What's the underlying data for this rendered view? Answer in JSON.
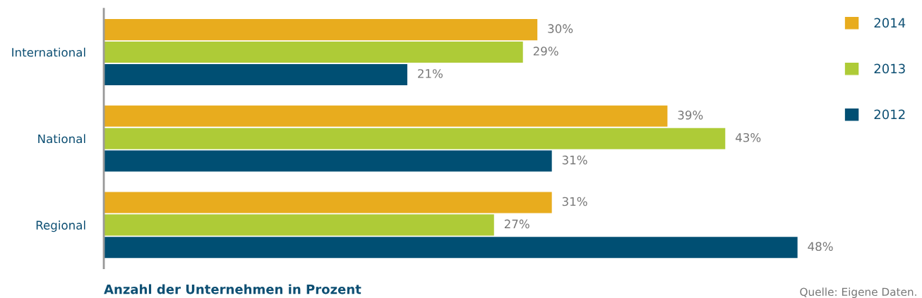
{
  "chart_data": {
    "type": "bar",
    "orientation": "horizontal",
    "title": "Anzahl der Unternehmen in Prozent",
    "categories": [
      "International",
      "National",
      "Regional"
    ],
    "series": [
      {
        "name": "2014",
        "color": "#e8ac1e",
        "values": [
          30,
          39,
          31
        ],
        "value_labels": [
          "30%",
          "39%",
          "31%"
        ]
      },
      {
        "name": "2013",
        "color": "#aecb37",
        "values": [
          29,
          43,
          27
        ],
        "value_labels": [
          "29%",
          "43%",
          "27%"
        ]
      },
      {
        "name": "2012",
        "color": "#004f73",
        "values": [
          21,
          31,
          48
        ],
        "value_labels": [
          "21%",
          "31%",
          "48%"
        ]
      }
    ],
    "legend": "top right",
    "grid": false,
    "annotations": [
      "Quelle: Eigene Daten."
    ]
  }
}
